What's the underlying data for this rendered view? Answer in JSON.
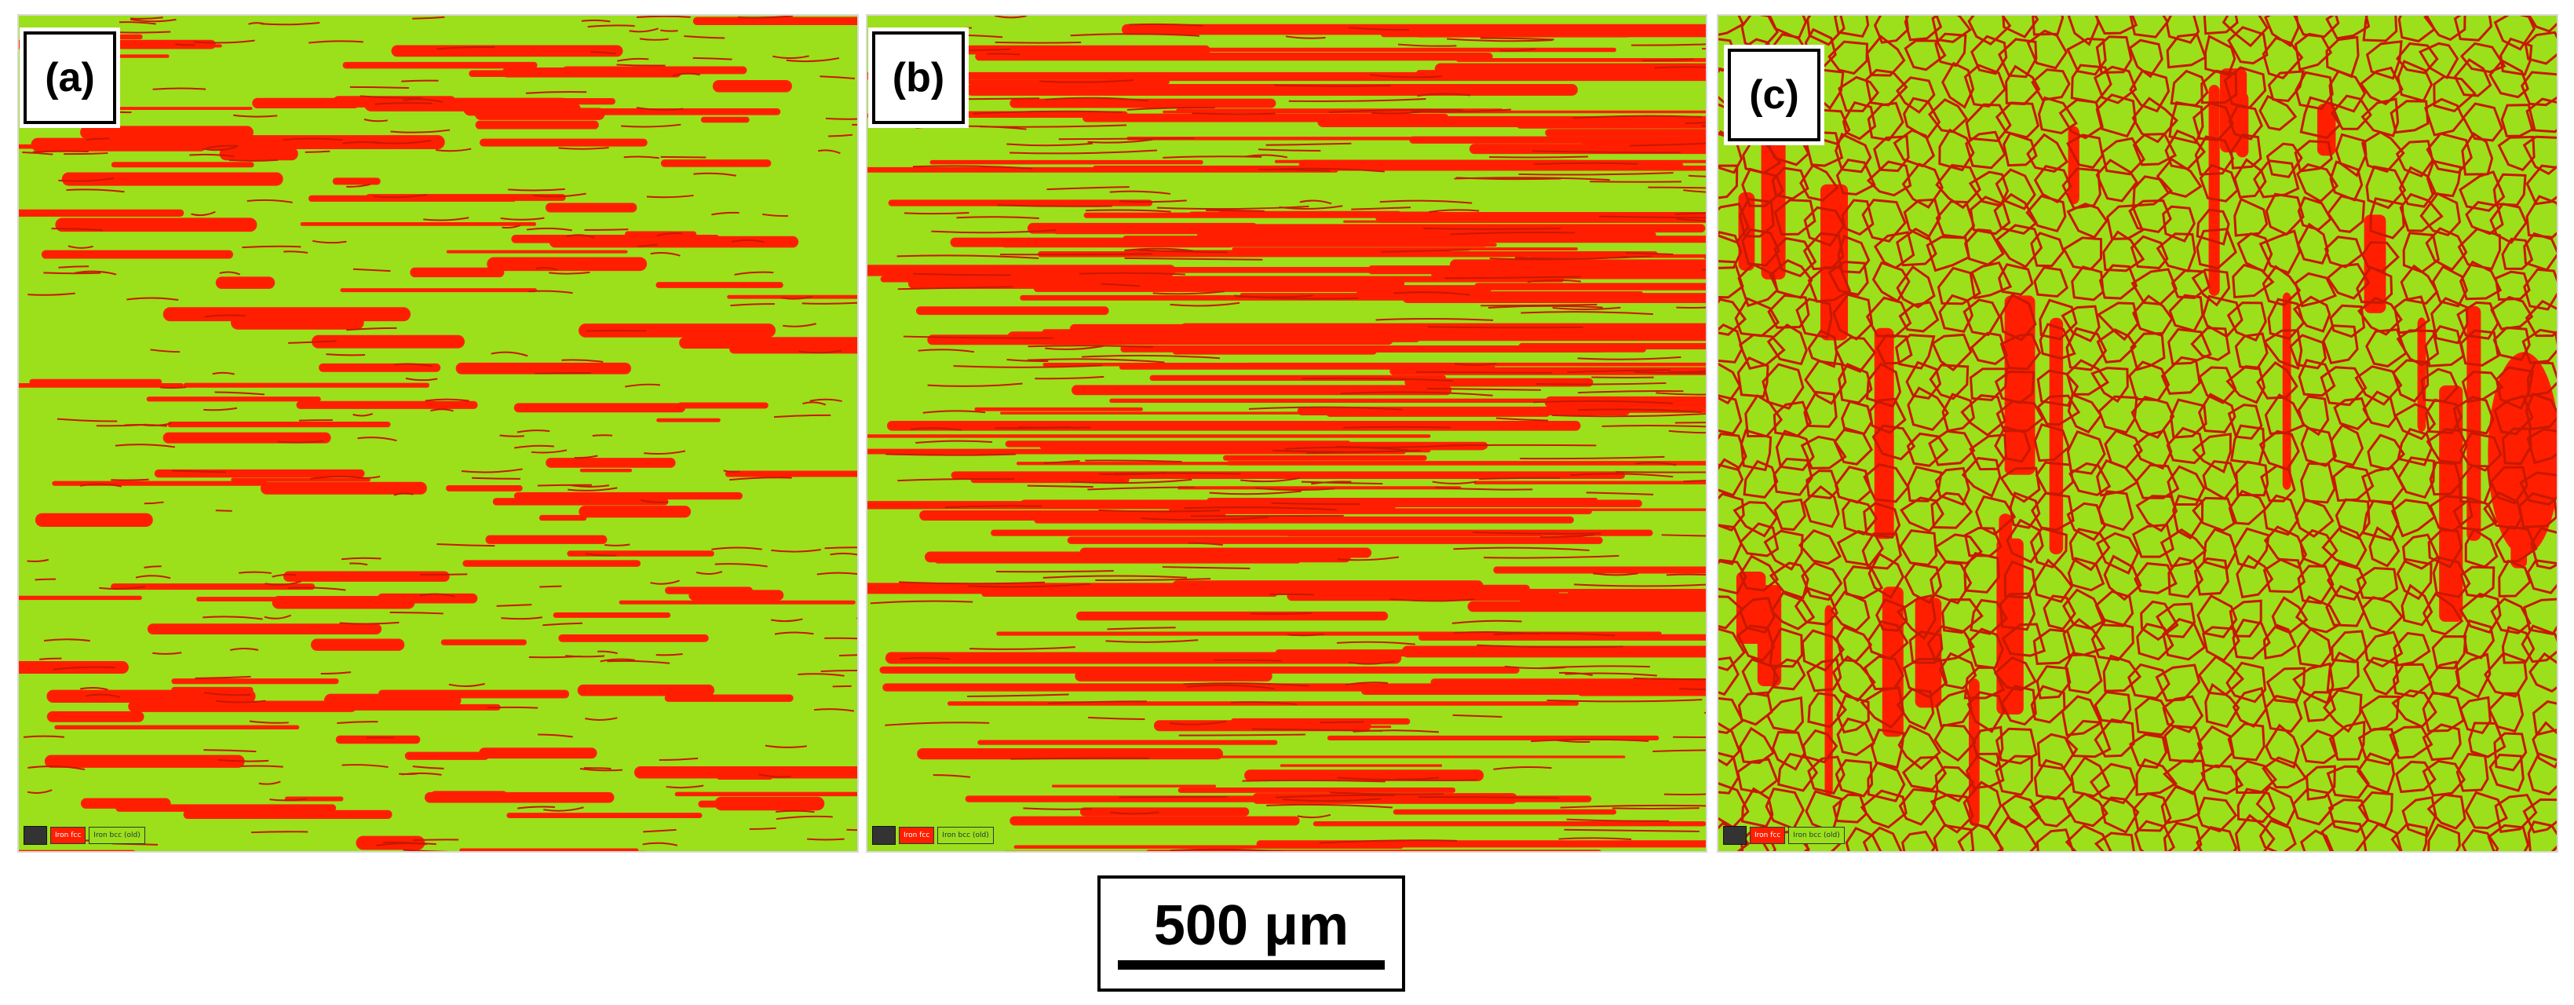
{
  "figure": {
    "panels": [
      {
        "id": "a",
        "label": "(a)",
        "texture": "mixed",
        "legend": {
          "phase1": "Iron fcc",
          "phase2": "Iron bcc (old)"
        }
      },
      {
        "id": "b",
        "label": "(b)",
        "texture": "banded",
        "legend": {
          "phase1": "Iron fcc",
          "phase2": "Iron bcc (old)"
        }
      },
      {
        "id": "c",
        "label": "(c)",
        "texture": "equiaxed",
        "legend": {
          "phase1": "Iron fcc",
          "phase2": "Iron bcc (old)"
        }
      }
    ],
    "scale_bar": {
      "text": "500 μm"
    }
  },
  "colors": {
    "phase_red": "#ff1f00",
    "phase_green": "#9be01a",
    "boundary": "#c81800"
  }
}
